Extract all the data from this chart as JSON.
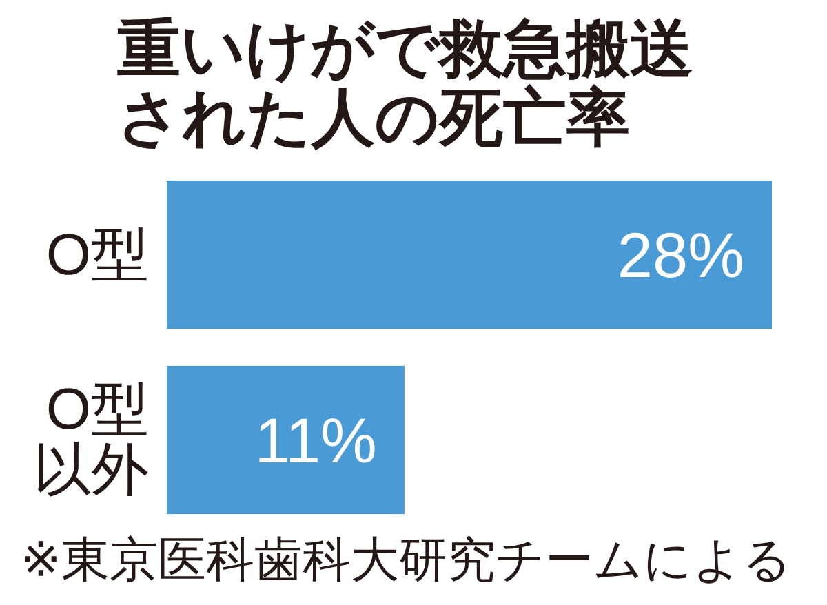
{
  "chart_data": {
    "type": "bar",
    "orientation": "horizontal",
    "title": "重いけがで救急搬送された人の死亡率",
    "categories": [
      "O型",
      "O型以外"
    ],
    "values": [
      28,
      11
    ],
    "value_labels": [
      "28%",
      "11%"
    ],
    "color": "#4a9ad6",
    "annotations": [
      "※東京医科歯科大研究チームによる"
    ]
  }
}
